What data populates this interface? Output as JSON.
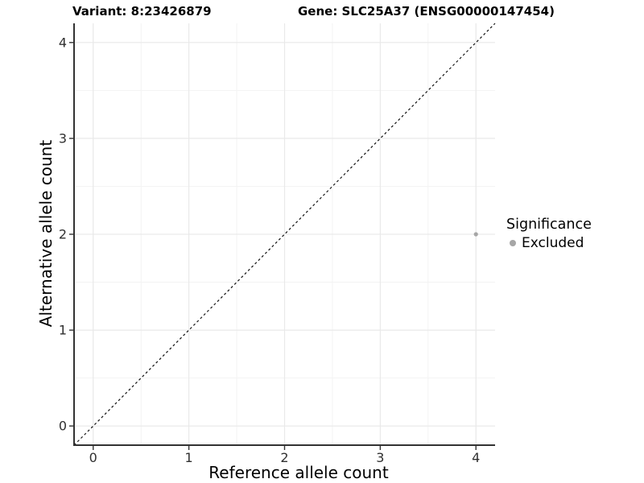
{
  "chart_data": {
    "type": "scatter",
    "title_left": "Variant: 8:23426879",
    "title_right": "Gene: SLC25A37 (ENSG00000147454)",
    "xlabel": "Reference allele count",
    "ylabel": "Alternative allele count",
    "xlim": [
      -0.2,
      4.2
    ],
    "ylim": [
      -0.2,
      4.2
    ],
    "x_ticks": [
      0,
      1,
      2,
      3,
      4
    ],
    "y_ticks": [
      0,
      1,
      2,
      3,
      4
    ],
    "x_minor_ticks": [
      0.5,
      1.5,
      2.5,
      3.5
    ],
    "y_minor_ticks": [
      0.5,
      1.5,
      2.5,
      3.5
    ],
    "grid": true,
    "points": [
      {
        "x": 4,
        "y": 2,
        "series": "Excluded"
      }
    ],
    "identity_line": {
      "description": "y = x reference line",
      "dashed": true
    },
    "legend": {
      "title": "Significance",
      "position": "right",
      "items": [
        {
          "label": "Excluded",
          "color": "#a6a6a6"
        }
      ]
    }
  },
  "colors": {
    "background": "#ffffff",
    "point_excluded": "#a6a6a6",
    "grid_major": "#e9e9e9",
    "grid_minor": "#f3f3f3",
    "axis_line": "#333333",
    "tick_mark": "#333333",
    "tick_label": "#303030",
    "dashed_line": "#111111"
  }
}
